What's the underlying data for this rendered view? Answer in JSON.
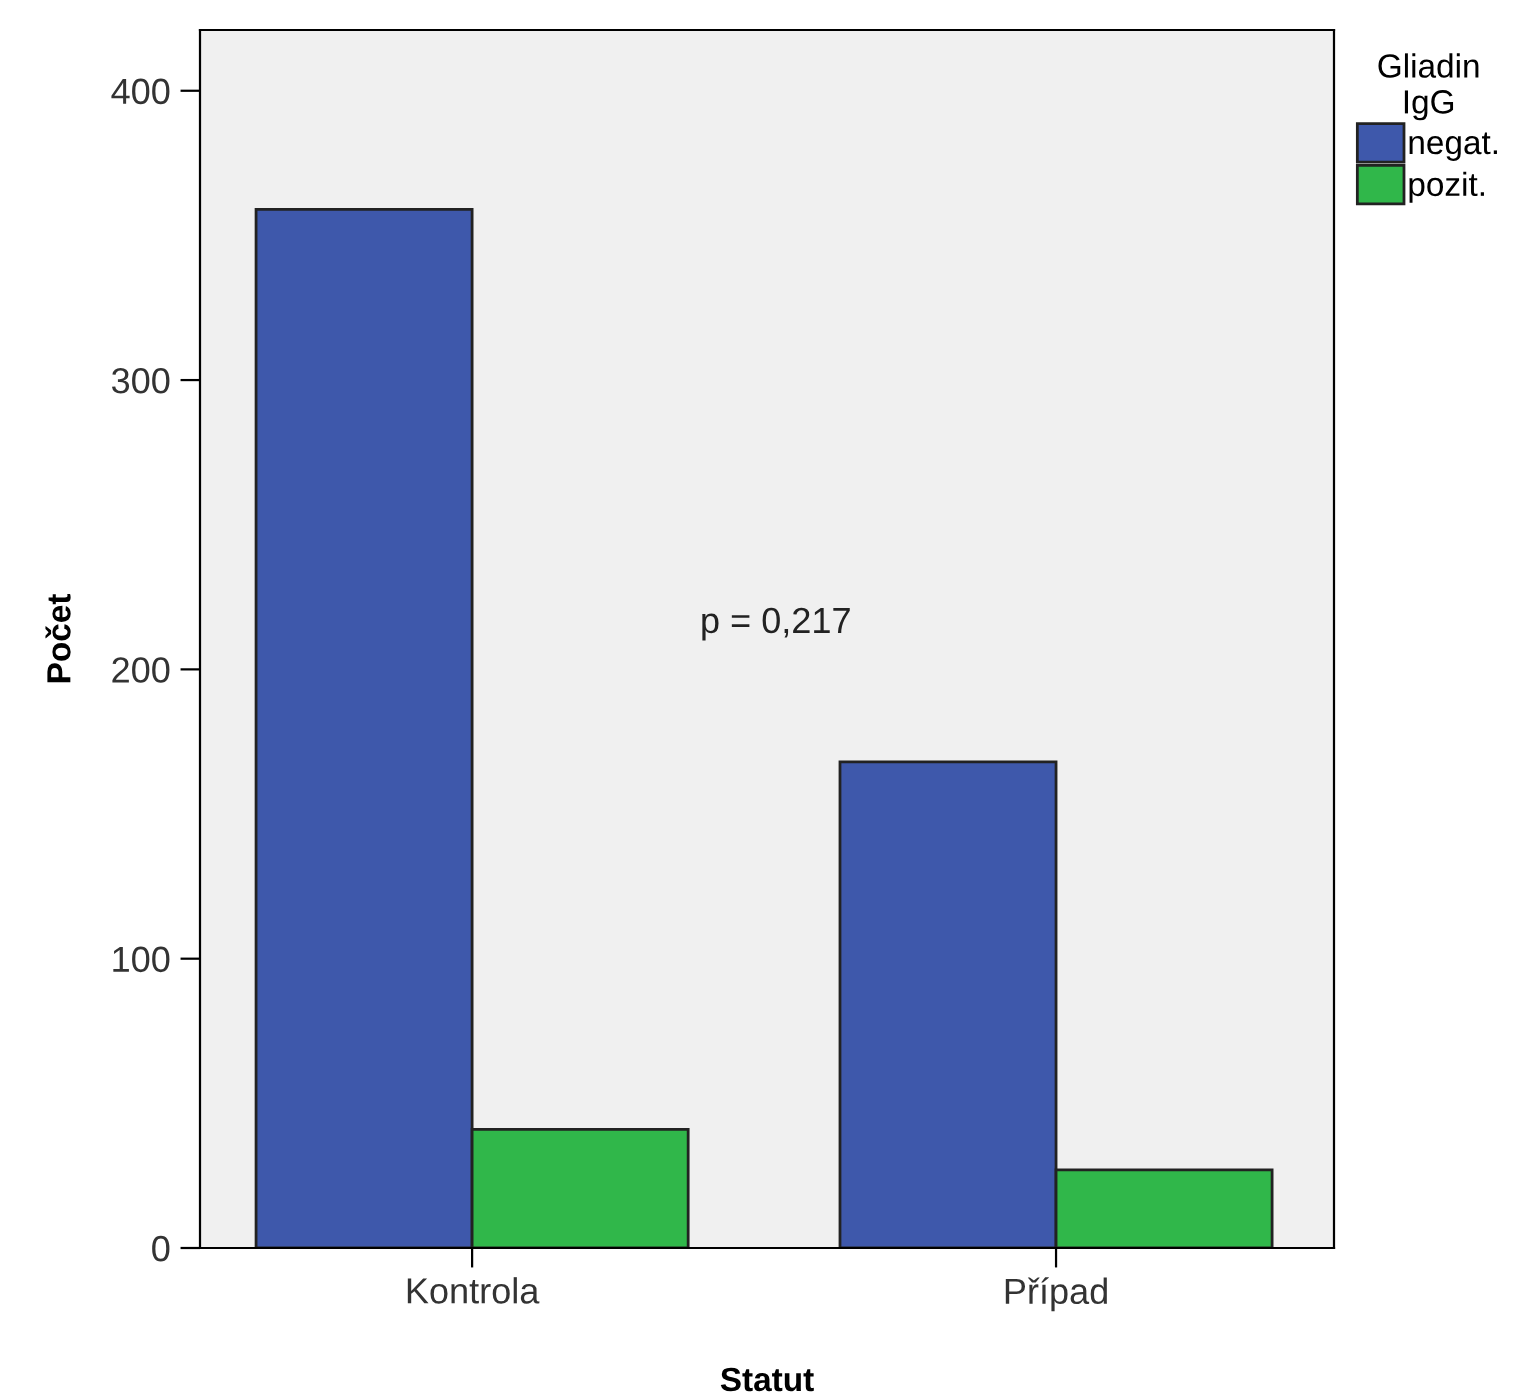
{
  "chart_data": {
    "type": "bar",
    "xlabel": "Statut",
    "ylabel": "Počet",
    "legend_title": "Gliadin\nIgG",
    "categories": [
      "Kontrola",
      "Případ"
    ],
    "series": [
      {
        "name": "negat.",
        "color": "#3e58ab",
        "values": [
          359,
          168
        ]
      },
      {
        "name": "pozit.",
        "color": "#30b74a",
        "values": [
          41,
          27
        ]
      }
    ],
    "ylim": [
      0,
      421
    ],
    "yticks": [
      0,
      100,
      200,
      300,
      400
    ],
    "grid": false,
    "legend": "top right",
    "annotations": [
      "p = 0,217"
    ]
  }
}
